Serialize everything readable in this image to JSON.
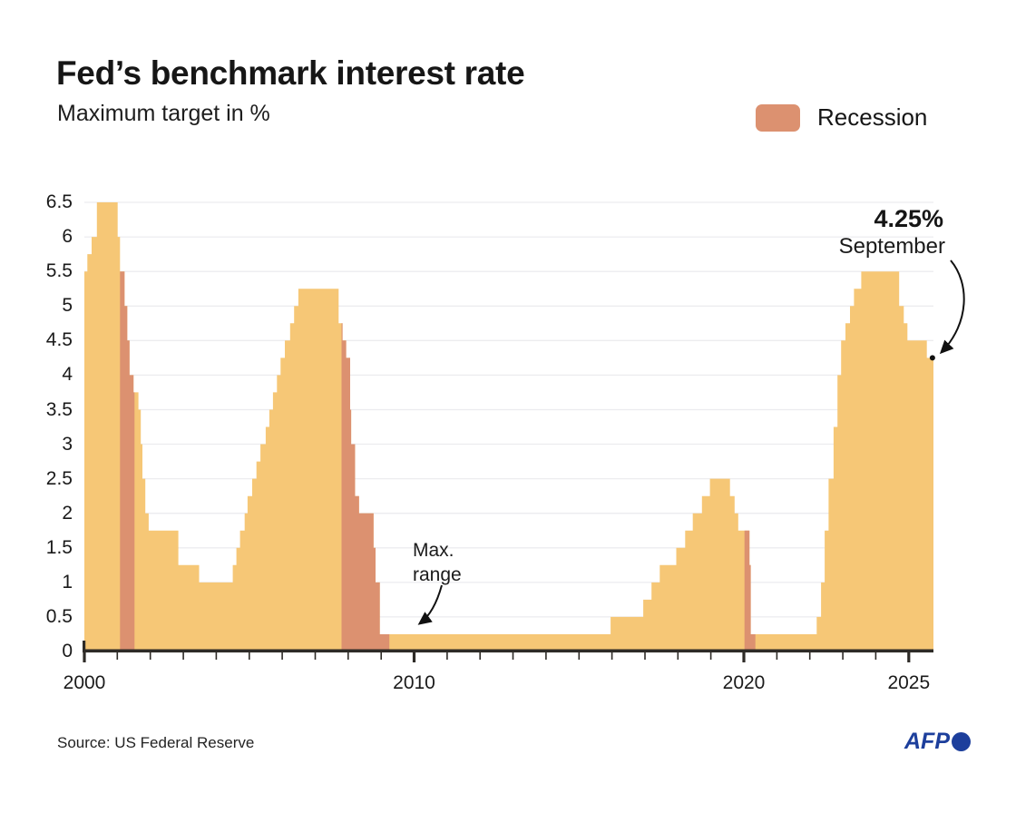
{
  "header": {
    "title": "Fed’s benchmark interest rate",
    "subtitle": "Maximum target in %"
  },
  "legend": {
    "label": "Recession"
  },
  "annotations": {
    "latest_value": "4.25%",
    "latest_month": "September",
    "max_range": [
      "Max.",
      "range"
    ]
  },
  "footer": {
    "source": "Source: US Federal Reserve",
    "logo_text": "AFP"
  },
  "colors": {
    "area": "#f6c776",
    "recession": "#dc9170",
    "grid": "#ececef",
    "axis": "#2e2b27",
    "annotation": "#111111",
    "afp_blue": "#1d3f9c"
  },
  "chart_data": {
    "type": "area",
    "title": "Fed's benchmark interest rate",
    "subtitle": "Maximum target in %",
    "series_name": "Fed benchmark interest rate, maximum target (%)",
    "xlim": [
      2000,
      2025.78
    ],
    "ylim": [
      0,
      6.5
    ],
    "grid": "horizontal lines every 0.5",
    "legend_position": "top-right",
    "y_ticks": [
      0,
      0.5,
      1,
      1.5,
      2,
      2.5,
      3,
      3.5,
      4,
      4.5,
      5,
      5.5,
      6,
      6.5
    ],
    "x_major_ticks": [
      2000,
      2010,
      2020,
      2025
    ],
    "x_minor_tick_step": 1,
    "steps": [
      [
        2000.0,
        5.5
      ],
      [
        2000.09,
        5.75
      ],
      [
        2000.22,
        6.0
      ],
      [
        2000.38,
        6.5
      ],
      [
        2001.01,
        6.0
      ],
      [
        2001.08,
        5.5
      ],
      [
        2001.22,
        5.0
      ],
      [
        2001.3,
        4.5
      ],
      [
        2001.37,
        4.0
      ],
      [
        2001.49,
        3.75
      ],
      [
        2001.64,
        3.5
      ],
      [
        2001.71,
        3.0
      ],
      [
        2001.76,
        2.5
      ],
      [
        2001.85,
        2.0
      ],
      [
        2001.95,
        1.75
      ],
      [
        2002.85,
        1.25
      ],
      [
        2003.48,
        1.0
      ],
      [
        2004.5,
        1.25
      ],
      [
        2004.61,
        1.5
      ],
      [
        2004.72,
        1.75
      ],
      [
        2004.86,
        2.0
      ],
      [
        2004.95,
        2.25
      ],
      [
        2005.09,
        2.5
      ],
      [
        2005.22,
        2.75
      ],
      [
        2005.34,
        3.0
      ],
      [
        2005.5,
        3.25
      ],
      [
        2005.61,
        3.5
      ],
      [
        2005.72,
        3.75
      ],
      [
        2005.84,
        4.0
      ],
      [
        2005.95,
        4.25
      ],
      [
        2006.08,
        4.5
      ],
      [
        2006.24,
        4.75
      ],
      [
        2006.36,
        5.0
      ],
      [
        2006.49,
        5.25
      ],
      [
        2007.71,
        4.75
      ],
      [
        2007.83,
        4.5
      ],
      [
        2007.94,
        4.25
      ],
      [
        2008.06,
        3.5
      ],
      [
        2008.09,
        3.0
      ],
      [
        2008.21,
        2.25
      ],
      [
        2008.33,
        2.0
      ],
      [
        2008.77,
        1.5
      ],
      [
        2008.83,
        1.0
      ],
      [
        2008.96,
        0.25
      ],
      [
        2015.96,
        0.5
      ],
      [
        2016.95,
        0.75
      ],
      [
        2017.2,
        1.0
      ],
      [
        2017.45,
        1.25
      ],
      [
        2017.95,
        1.5
      ],
      [
        2018.22,
        1.75
      ],
      [
        2018.45,
        2.0
      ],
      [
        2018.73,
        2.25
      ],
      [
        2018.97,
        2.5
      ],
      [
        2019.58,
        2.25
      ],
      [
        2019.72,
        2.0
      ],
      [
        2019.83,
        1.75
      ],
      [
        2020.17,
        1.25
      ],
      [
        2020.21,
        0.25
      ],
      [
        2022.21,
        0.5
      ],
      [
        2022.34,
        1.0
      ],
      [
        2022.45,
        1.75
      ],
      [
        2022.57,
        2.5
      ],
      [
        2022.72,
        3.25
      ],
      [
        2022.84,
        4.0
      ],
      [
        2022.95,
        4.5
      ],
      [
        2023.08,
        4.75
      ],
      [
        2023.22,
        5.0
      ],
      [
        2023.34,
        5.25
      ],
      [
        2023.56,
        5.5
      ],
      [
        2024.71,
        5.0
      ],
      [
        2024.85,
        4.75
      ],
      [
        2024.96,
        4.5
      ],
      [
        2025.55,
        4.25
      ]
    ],
    "series_end": 2025.75,
    "recessions": [
      [
        2001.08,
        2001.52
      ],
      [
        2007.8,
        2009.25
      ],
      [
        2020.02,
        2020.35
      ]
    ],
    "end_point": {
      "year": 2025.72,
      "value": 4.25
    }
  }
}
